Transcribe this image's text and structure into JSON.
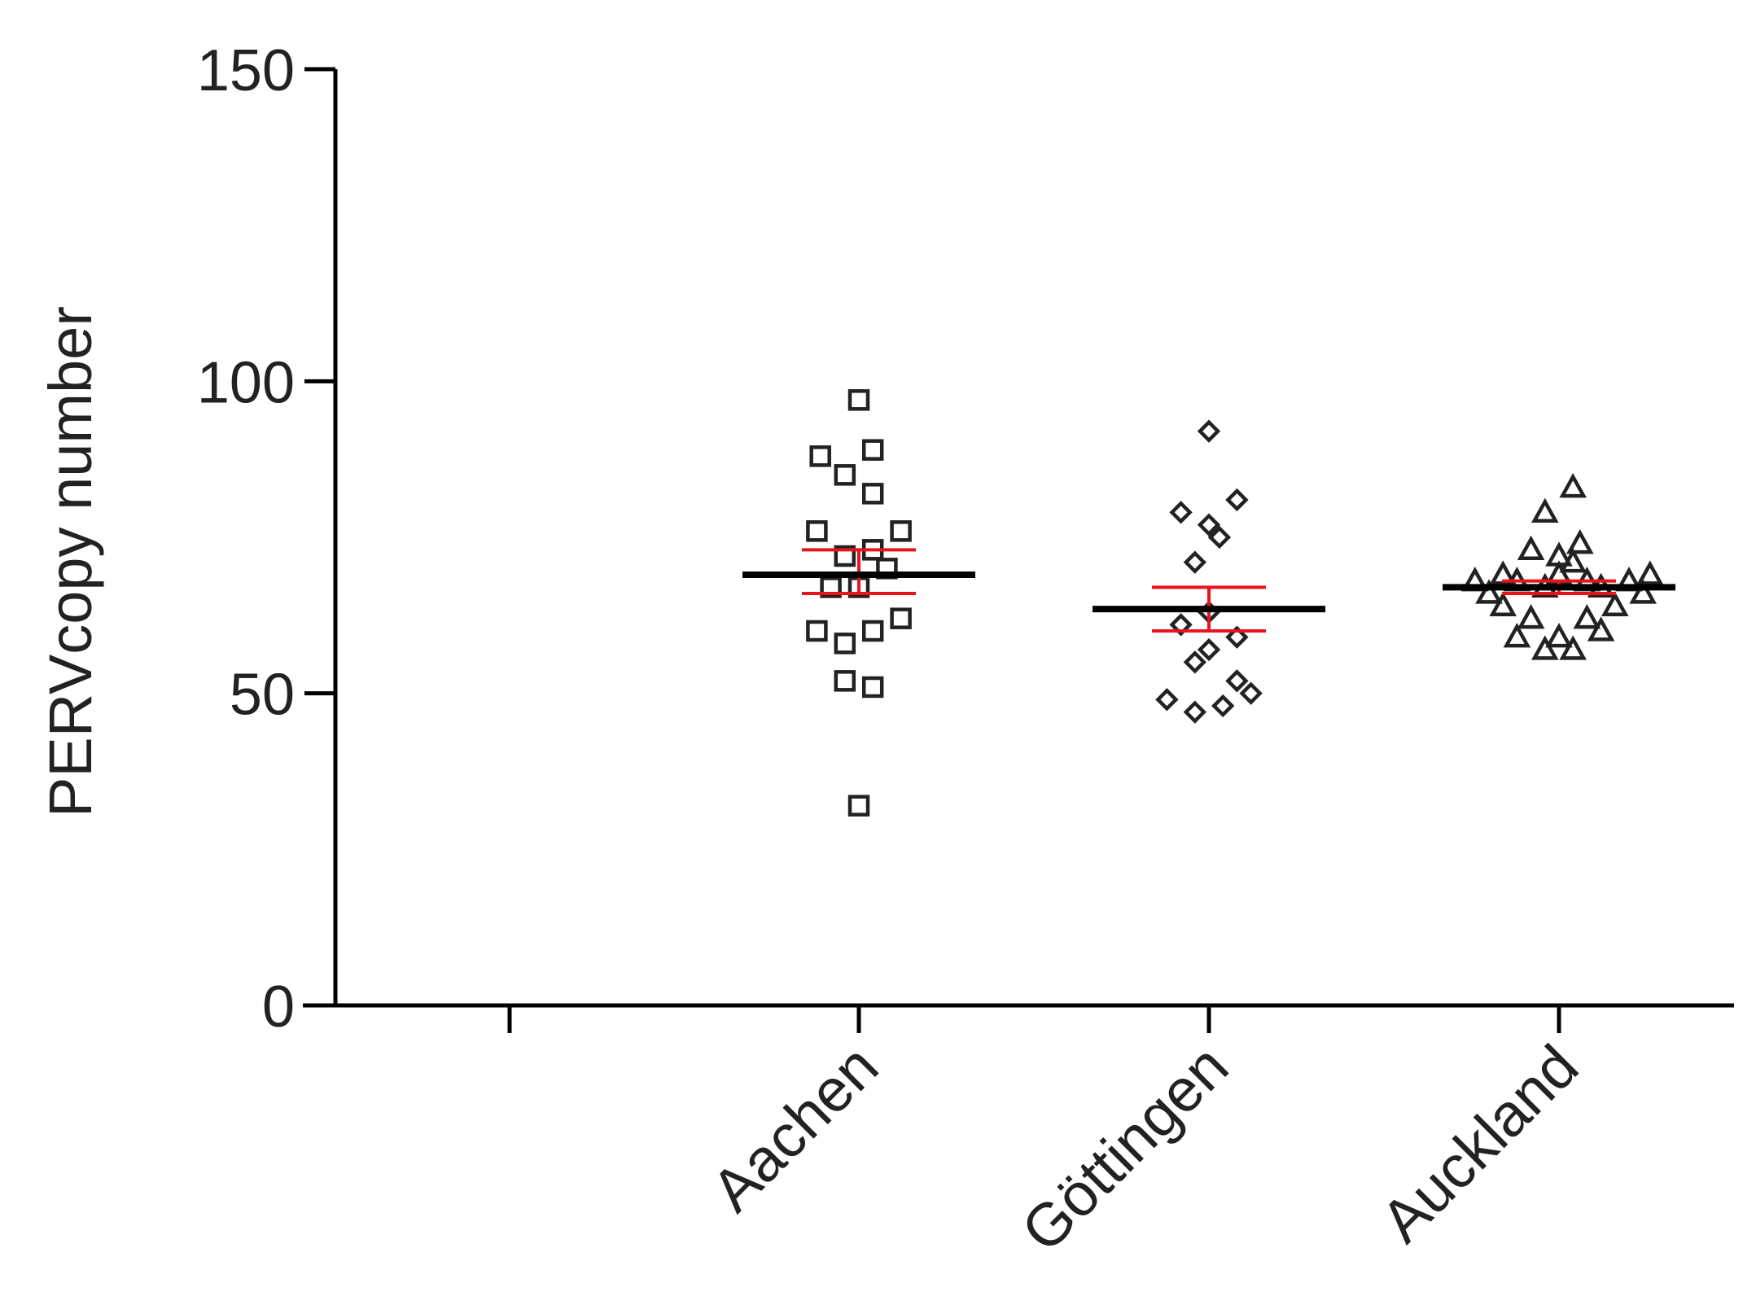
{
  "chart_data": {
    "type": "scatter",
    "title": "",
    "xlabel": "",
    "ylabel": "PERVcopy number",
    "ylim": [
      0,
      150
    ],
    "yticks": [
      0,
      50,
      100,
      150
    ],
    "grid": false,
    "categories": [
      "",
      "Aachen",
      "Göttingen",
      "Auckland"
    ],
    "colors": {
      "points": "#222222",
      "mean": "#000000",
      "error": "#e8141c",
      "axis": "#000000"
    },
    "series": [
      {
        "category": "Aachen",
        "marker": "square",
        "mean": 69,
        "error": [
          66,
          73
        ],
        "points": [
          [
            0,
            97
          ],
          [
            -0.11,
            88
          ],
          [
            0.04,
            89
          ],
          [
            -0.04,
            85
          ],
          [
            0.04,
            82
          ],
          [
            -0.12,
            76
          ],
          [
            0.12,
            76
          ],
          [
            -0.04,
            72
          ],
          [
            0.04,
            73
          ],
          [
            0.08,
            70
          ],
          [
            -0.08,
            67
          ],
          [
            0.0,
            67
          ],
          [
            0.12,
            62
          ],
          [
            -0.12,
            60
          ],
          [
            0.04,
            60
          ],
          [
            -0.04,
            58
          ],
          [
            -0.04,
            52
          ],
          [
            0.04,
            51
          ],
          [
            0.0,
            32
          ]
        ]
      },
      {
        "category": "Göttingen",
        "marker": "diamond",
        "mean": 63.5,
        "error": [
          60,
          67
        ],
        "points": [
          [
            0,
            92
          ],
          [
            -0.08,
            79
          ],
          [
            0.08,
            81
          ],
          [
            0.0,
            77
          ],
          [
            0.03,
            75
          ],
          [
            -0.04,
            71
          ],
          [
            -0.08,
            61
          ],
          [
            0.0,
            63
          ],
          [
            0.08,
            59
          ],
          [
            0.0,
            57
          ],
          [
            -0.04,
            55
          ],
          [
            0.08,
            52
          ],
          [
            0.12,
            50
          ],
          [
            -0.12,
            49
          ],
          [
            -0.04,
            47
          ],
          [
            0.04,
            48
          ]
        ]
      },
      {
        "category": "Auckland",
        "marker": "triangle",
        "mean": 67,
        "error": [
          66,
          68
        ],
        "points": [
          [
            0.04,
            83
          ],
          [
            -0.04,
            79
          ],
          [
            0.06,
            74
          ],
          [
            -0.08,
            73
          ],
          [
            0.0,
            72
          ],
          [
            0.04,
            71
          ],
          [
            -0.16,
            69
          ],
          [
            0.26,
            69
          ],
          [
            -0.12,
            68
          ],
          [
            0.0,
            69
          ],
          [
            0.08,
            68
          ],
          [
            0.2,
            68
          ],
          [
            -0.24,
            68
          ],
          [
            -0.04,
            67
          ],
          [
            0.12,
            67
          ],
          [
            -0.2,
            66
          ],
          [
            0.24,
            66
          ],
          [
            0.16,
            64
          ],
          [
            -0.16,
            64
          ],
          [
            -0.08,
            62
          ],
          [
            0.08,
            62
          ],
          [
            0.12,
            60
          ],
          [
            -0.12,
            59
          ],
          [
            0.0,
            59
          ],
          [
            -0.04,
            57
          ],
          [
            0.04,
            57
          ]
        ]
      }
    ]
  }
}
